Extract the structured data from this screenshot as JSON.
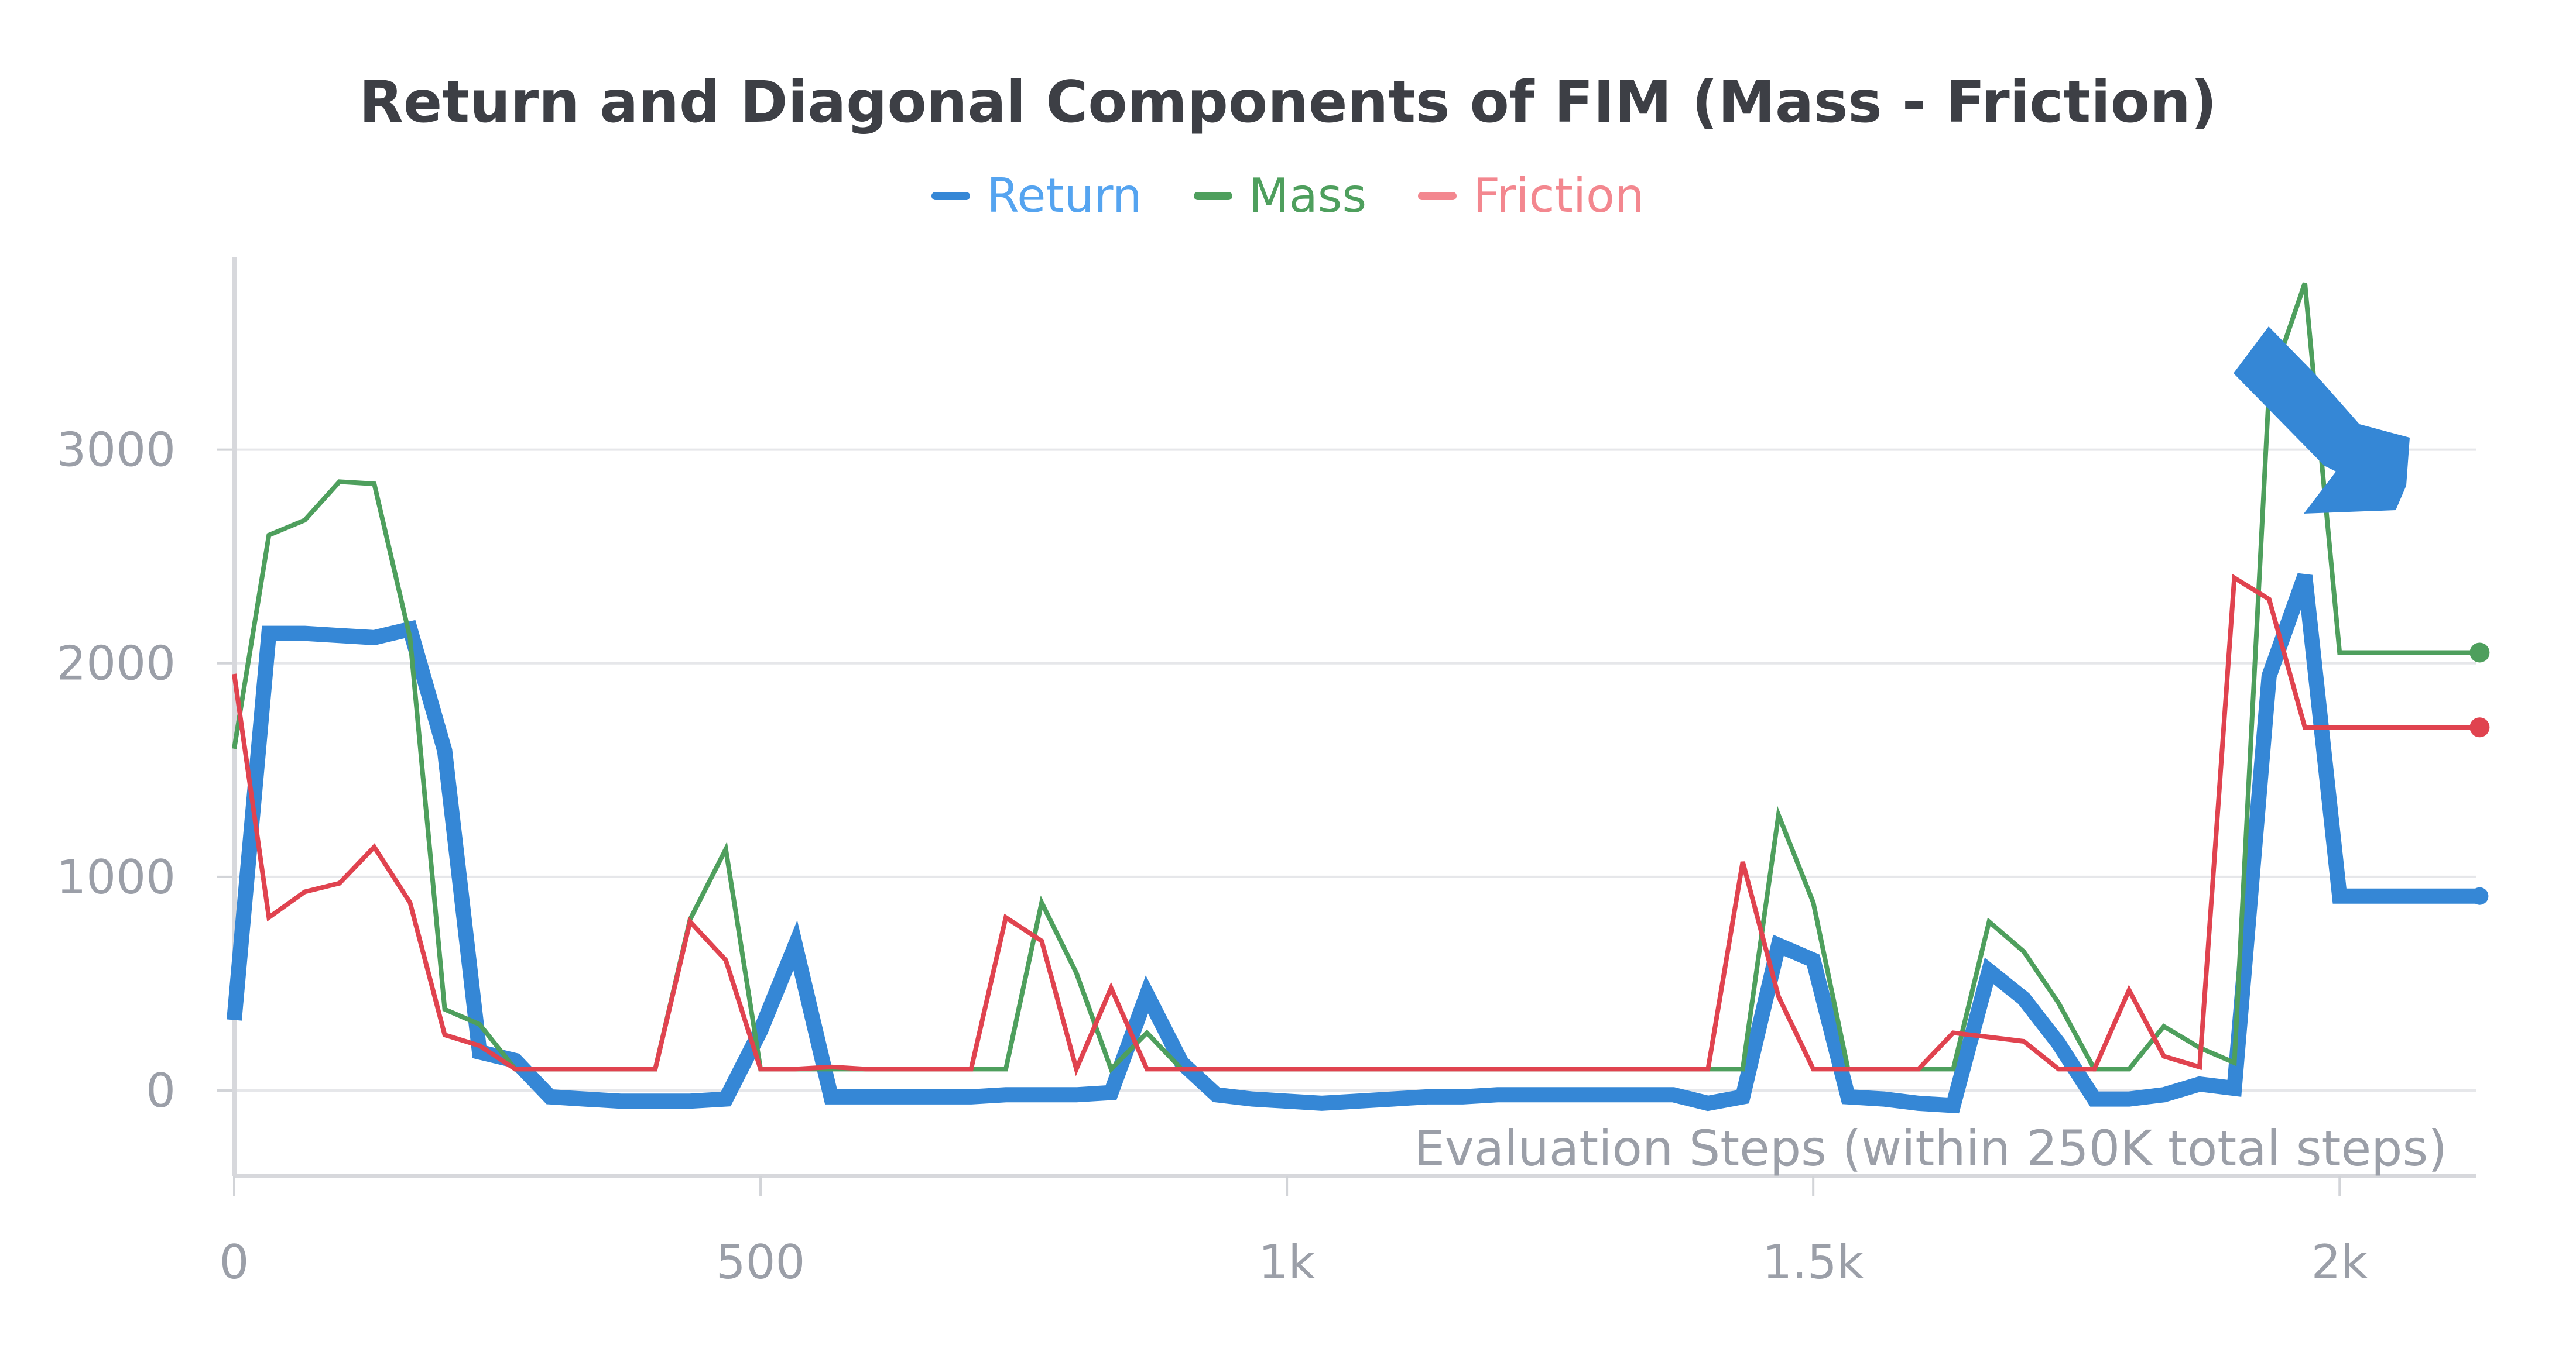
{
  "chart_data": {
    "type": "line",
    "title": "Return and Diagonal Components of FIM (Mass - Friction)",
    "xlabel": "Evaluation Steps (within 250K total steps)",
    "ylabel": "",
    "xlim": [
      0,
      2130
    ],
    "ylim": [
      -400,
      3900
    ],
    "x_ticks": [
      0,
      500,
      1000,
      1500,
      2000
    ],
    "x_tick_labels": [
      "0",
      "500",
      "1k",
      "1.5k",
      "2k"
    ],
    "y_ticks": [
      0,
      1000,
      2000,
      3000
    ],
    "y_tick_labels": [
      "0",
      "1000",
      "2000",
      "3000"
    ],
    "grid": true,
    "legend_position": "top-center",
    "annotation": "arrow",
    "x": [
      0,
      33,
      67,
      100,
      133,
      167,
      200,
      233,
      267,
      300,
      333,
      367,
      400,
      433,
      467,
      500,
      533,
      567,
      600,
      633,
      667,
      700,
      733,
      767,
      800,
      833,
      867,
      900,
      933,
      967,
      1000,
      1033,
      1067,
      1100,
      1133,
      1167,
      1200,
      1233,
      1267,
      1300,
      1333,
      1367,
      1400,
      1433,
      1467,
      1500,
      1533,
      1567,
      1600,
      1633,
      1667,
      1700,
      1733,
      1767,
      1800,
      1833,
      1867,
      1900,
      1933,
      1967,
      2000,
      2033,
      2067,
      2100,
      2133
    ],
    "series": [
      {
        "name": "Return",
        "color": "#3587d6",
        "values": [
          330,
          2140,
          2140,
          2130,
          2120,
          2160,
          1590,
          180,
          140,
          -30,
          -40,
          -50,
          -50,
          -50,
          -40,
          280,
          680,
          -30,
          -30,
          -30,
          -30,
          -30,
          -20,
          -20,
          -20,
          -10,
          450,
          130,
          -20,
          -40,
          -50,
          -60,
          -50,
          -40,
          -30,
          -30,
          -20,
          -20,
          -20,
          -20,
          -20,
          -20,
          -60,
          -30,
          680,
          610,
          -30,
          -40,
          -60,
          -70,
          560,
          430,
          220,
          -40,
          -40,
          -20,
          30,
          10,
          1940,
          2410,
          910,
          910,
          910,
          910,
          910
        ],
        "end_x": 2133
      },
      {
        "name": "Mass",
        "color": "#4e9f5d",
        "values": [
          1600,
          2600,
          2670,
          2850,
          2840,
          2120,
          380,
          310,
          100,
          100,
          100,
          100,
          100,
          800,
          1130,
          100,
          100,
          100,
          100,
          100,
          100,
          100,
          100,
          880,
          550,
          100,
          270,
          100,
          100,
          100,
          100,
          100,
          100,
          100,
          100,
          100,
          100,
          100,
          100,
          100,
          100,
          100,
          100,
          100,
          1290,
          880,
          100,
          100,
          100,
          100,
          790,
          650,
          410,
          100,
          100,
          300,
          200,
          130,
          3290,
          3780,
          2050,
          2050,
          2050,
          2050,
          2050
        ],
        "end_x": 2133
      },
      {
        "name": "Friction",
        "color": "#e0434f",
        "values": [
          1950,
          810,
          930,
          970,
          1140,
          880,
          260,
          210,
          100,
          100,
          100,
          100,
          100,
          790,
          610,
          100,
          100,
          110,
          100,
          100,
          100,
          100,
          810,
          700,
          100,
          480,
          100,
          100,
          100,
          100,
          100,
          100,
          100,
          100,
          100,
          100,
          100,
          100,
          100,
          100,
          100,
          100,
          100,
          1070,
          440,
          100,
          100,
          100,
          100,
          270,
          250,
          230,
          100,
          100,
          470,
          160,
          110,
          2400,
          2300,
          1700,
          1700,
          1700,
          1700,
          1700,
          1700
        ],
        "end_x": 2133
      }
    ]
  },
  "legend": [
    {
      "label": "Return",
      "color": "#3587d6",
      "text_color": "#55a4f0"
    },
    {
      "label": "Mass",
      "color": "#4e9f5d",
      "text_color": "#4e9f5d"
    },
    {
      "label": "Friction",
      "color": "#f3878f",
      "text_color": "#f3878f"
    }
  ]
}
